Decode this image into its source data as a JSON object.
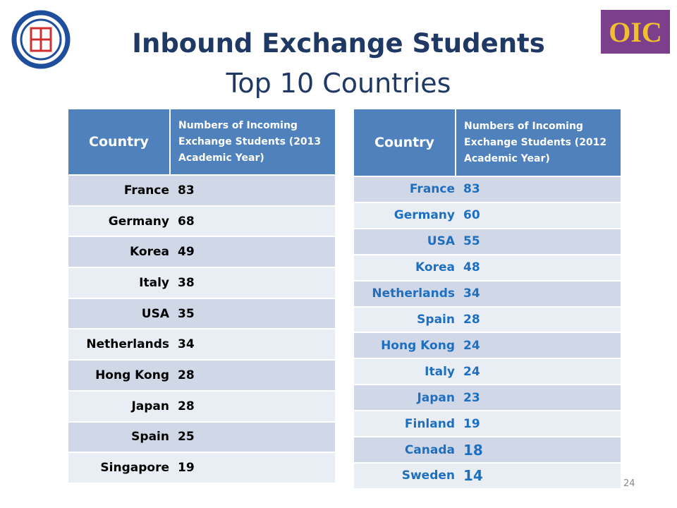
{
  "header": {
    "title": "Inbound Exchange Students",
    "subtitle": "Top 10 Countries",
    "logo_text": "OIC"
  },
  "tables": [
    {
      "columns": [
        "Country",
        "Numbers of Incoming Exchange Students (2013 Academic Year)"
      ],
      "rows": [
        [
          "France",
          83
        ],
        [
          "Germany",
          68
        ],
        [
          "Korea",
          49
        ],
        [
          "Italy",
          38
        ],
        [
          "USA",
          35
        ],
        [
          "Netherlands",
          34
        ],
        [
          "Hong Kong",
          28
        ],
        [
          "Japan",
          28
        ],
        [
          "Spain",
          25
        ],
        [
          "Singapore",
          19
        ]
      ]
    },
    {
      "columns": [
        "Country",
        "Numbers of Incoming Exchange Students (2012 Academic Year)"
      ],
      "rows": [
        [
          "France",
          83
        ],
        [
          "Germany",
          60
        ],
        [
          "USA",
          55
        ],
        [
          "Korea",
          48
        ],
        [
          "Netherlands",
          34
        ],
        [
          "Spain",
          28
        ],
        [
          "Hong Kong",
          24
        ],
        [
          "Italy",
          24
        ],
        [
          "Japan",
          23
        ],
        [
          "Finland",
          19
        ],
        [
          "Canada",
          18
        ],
        [
          "Sweden",
          14
        ]
      ]
    }
  ],
  "page_number": 24
}
